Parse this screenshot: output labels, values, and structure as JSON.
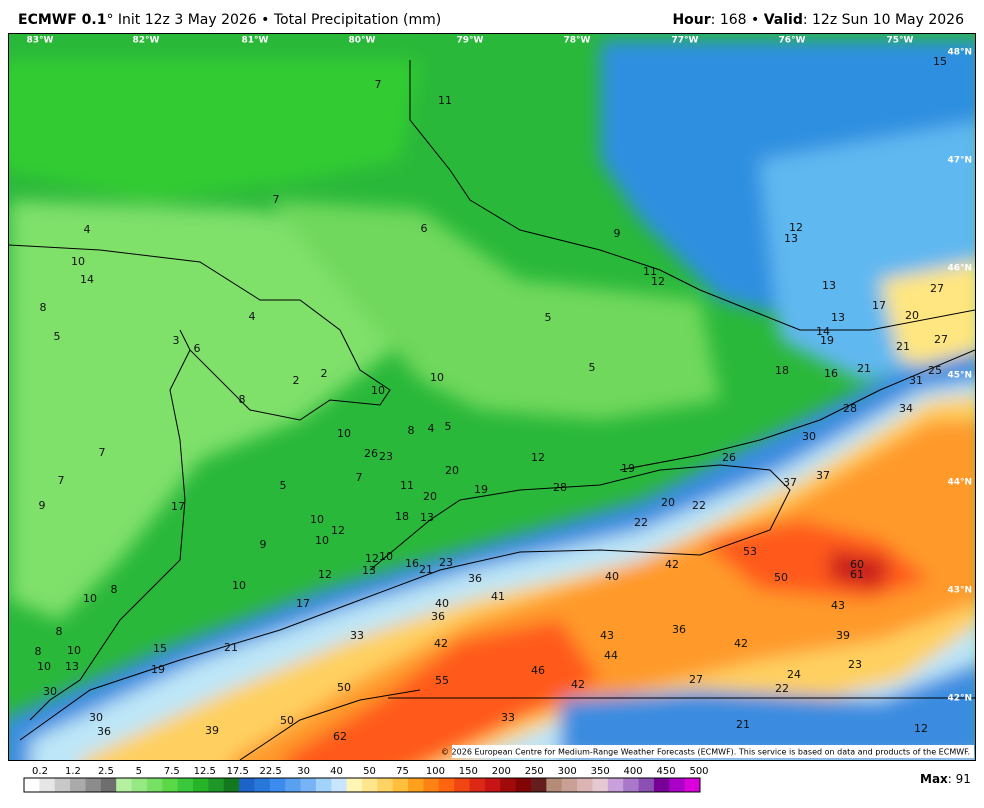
{
  "header": {
    "model": "ECMWF 0.1",
    "title": "° Init 12z 3 May 2026 • Total Precipitation (mm)",
    "hour_label": "Hour",
    "hour": ": 168 • ",
    "valid_label": "Valid",
    "valid": ": 12z Sun 10 May 2026"
  },
  "longitudes": [
    "83°W",
    "82°W",
    "81°W",
    "80°W",
    "79°W",
    "78°W",
    "77°W",
    "76°W",
    "75°W"
  ],
  "latitudes": [
    "48°N",
    "47°N",
    "46°N",
    "45°N",
    "44°N",
    "43°N",
    "42°N"
  ],
  "point_values": [
    7,
    11,
    15,
    7,
    4,
    6,
    9,
    12,
    13,
    10,
    14,
    11,
    12,
    13,
    27,
    8,
    4,
    5,
    17,
    20,
    13,
    14,
    19,
    5,
    3,
    6,
    27,
    21,
    5,
    10,
    18,
    16,
    21,
    25,
    31,
    2,
    2,
    10,
    8,
    28,
    34,
    10,
    8,
    4,
    5,
    7,
    30,
    26,
    23,
    12,
    20,
    19,
    26,
    7,
    7,
    11,
    5,
    37,
    37,
    28,
    19,
    20,
    9,
    17,
    20,
    22,
    18,
    13,
    10,
    12,
    22,
    10,
    9,
    53,
    12,
    10,
    16,
    21,
    23,
    42,
    60,
    61,
    13,
    12,
    36,
    40,
    50,
    8,
    10,
    10,
    41,
    40,
    17,
    43,
    36,
    8,
    43,
    36,
    39,
    33,
    42,
    42,
    10,
    15,
    21,
    8,
    44,
    23,
    13,
    10,
    19,
    46,
    24,
    55,
    27,
    42,
    50,
    22,
    30,
    30,
    33,
    50,
    21,
    12,
    36,
    39,
    62
  ],
  "colorbar": {
    "labels": [
      "0.2",
      "1.2",
      "2.5",
      "5",
      "7.5",
      "12.5",
      "17.5",
      "22.5",
      "30",
      "40",
      "50",
      "75",
      "100",
      "150",
      "200",
      "250",
      "300",
      "350",
      "400",
      "450",
      "500"
    ]
  },
  "max": {
    "label": "Max",
    "value": ": 91"
  },
  "credit": "© 2026 European Centre for Medium-Range Weather Forecasts (ECMWF). This service is based on data and products of the ECMWF."
}
